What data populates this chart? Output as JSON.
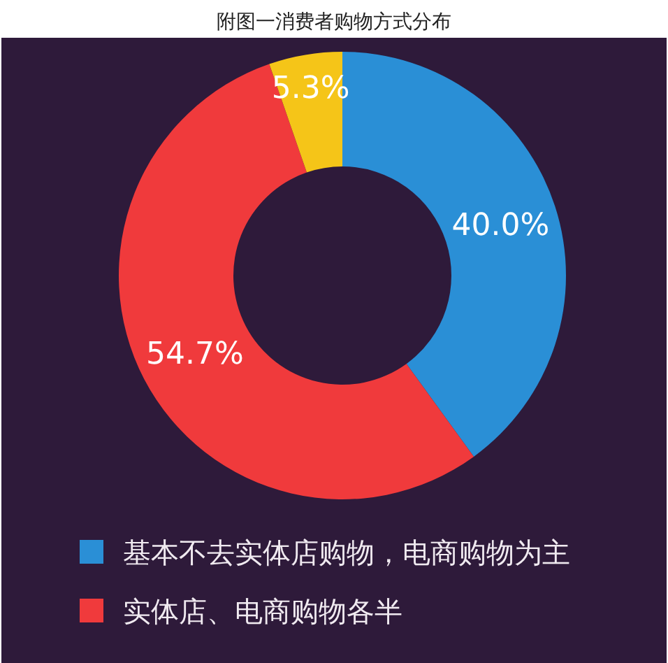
{
  "chart_data": {
    "type": "donut",
    "title": "附图一消费者购物方式分布",
    "categories": [
      "基本不去实体店购物，电商购物为主",
      "实体店、电商购物各半",
      null
    ],
    "values": [
      40.0,
      54.7,
      5.3
    ],
    "colors": [
      "#2a8fd6",
      "#f03a3c",
      "#f5c518"
    ],
    "value_labels": [
      "40.0%",
      "54.7%",
      "5.3%"
    ],
    "legend": "bottom"
  }
}
